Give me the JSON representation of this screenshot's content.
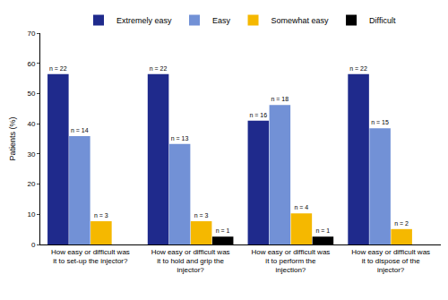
{
  "chart_data": {
    "type": "bar",
    "y_label": "Patients (%)",
    "categories": [
      "How easy or difficult was it to set-up the injector?",
      "How easy or difficult was it to hold and grip the injector?",
      "How easy or difficult was it to perform the injection?",
      "How easy or difficult was it to dispose of the injector?"
    ],
    "series": [
      {
        "name": "Extremely easy",
        "color": "#1f2a8c",
        "values": [
          56.4,
          56.4,
          41.0,
          56.4
        ],
        "labels": [
          "n = 22",
          "n = 22",
          "n = 16",
          "n = 22"
        ]
      },
      {
        "name": "Easy",
        "color": "#7291d6",
        "values": [
          35.9,
          33.3,
          46.2,
          38.5
        ],
        "labels": [
          "n = 14",
          "n = 13",
          "n = 18",
          "n = 15"
        ]
      },
      {
        "name": "Somewhat easy",
        "color": "#f5b800",
        "values": [
          7.7,
          7.7,
          10.3,
          5.1
        ],
        "labels": [
          "n = 3",
          "n = 3",
          "n = 4",
          "n = 2"
        ]
      },
      {
        "name": "Difficult",
        "color": "#000000",
        "values": [
          null,
          2.6,
          2.6,
          null
        ],
        "labels": [
          null,
          "n = 1",
          "n = 1",
          null
        ]
      }
    ],
    "ylim": [
      0,
      70
    ],
    "yticks": [
      0,
      10,
      20,
      30,
      40,
      50,
      60,
      70
    ],
    "grid": false,
    "legend": "top"
  }
}
